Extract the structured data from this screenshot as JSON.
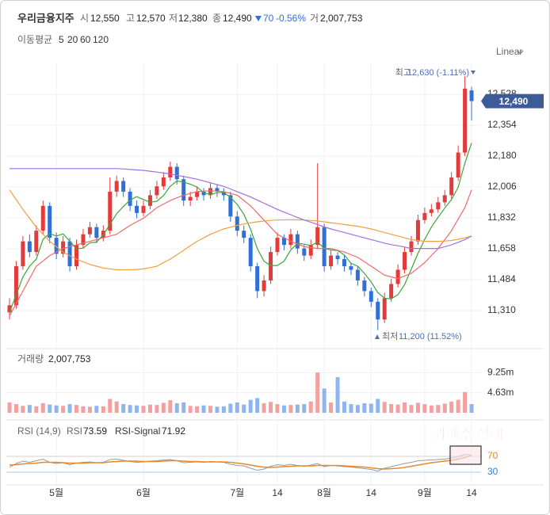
{
  "header": {
    "name": "우리금융지주",
    "items": [
      {
        "label": "시",
        "value": "12,550"
      },
      {
        "label": "고",
        "value": "12,570"
      },
      {
        "label": "저",
        "value": "12,380"
      },
      {
        "label": "종",
        "value": "12,490"
      }
    ],
    "change": "70",
    "change_pct": "-0.56%",
    "volume_label": "거",
    "volume": "2,007,753"
  },
  "chart_data": {
    "type": "candlestick",
    "scale": "Linear",
    "ma_label": "이동평균",
    "grid": true,
    "up_color": "#e33b3b",
    "down_color": "#2f6fd8",
    "categories": [
      null,
      null,
      null,
      null,
      null,
      null,
      null,
      "5월",
      null,
      null,
      null,
      null,
      null,
      null,
      null,
      null,
      null,
      null,
      null,
      null,
      "6월",
      null,
      null,
      null,
      null,
      null,
      null,
      null,
      null,
      null,
      null,
      null,
      null,
      null,
      "7월",
      null,
      null,
      null,
      null,
      null,
      "14",
      null,
      null,
      null,
      null,
      null,
      null,
      "8월",
      null,
      null,
      null,
      null,
      null,
      null,
      "14",
      null,
      null,
      null,
      null,
      null,
      null,
      null,
      "9월",
      null,
      null,
      null,
      null,
      null,
      null,
      "14"
    ],
    "candles": [
      [
        11300,
        11380,
        11260,
        11340
      ],
      [
        11340,
        11590,
        11320,
        11560
      ],
      [
        11560,
        11730,
        11540,
        11700
      ],
      [
        11700,
        11740,
        11610,
        11640
      ],
      [
        11640,
        11790,
        11620,
        11760
      ],
      [
        11760,
        11930,
        11740,
        11900
      ],
      [
        11900,
        11920,
        11690,
        11720
      ],
      [
        11720,
        11750,
        11600,
        11630
      ],
      [
        11630,
        11730,
        11610,
        11700
      ],
      [
        11700,
        11720,
        11530,
        11560
      ],
      [
        11560,
        11710,
        11540,
        11680
      ],
      [
        11680,
        11770,
        11660,
        11740
      ],
      [
        11740,
        11810,
        11720,
        11780
      ],
      [
        11780,
        11800,
        11690,
        11720
      ],
      [
        11720,
        11790,
        11700,
        11760
      ],
      [
        11760,
        12060,
        11740,
        11980
      ],
      [
        11980,
        12070,
        11950,
        12040
      ],
      [
        12040,
        12060,
        11950,
        11980
      ],
      [
        11980,
        12000,
        11870,
        11900
      ],
      [
        11900,
        11930,
        11830,
        11860
      ],
      [
        11860,
        11930,
        11840,
        11900
      ],
      [
        11900,
        11990,
        11880,
        11960
      ],
      [
        11960,
        12040,
        11940,
        12010
      ],
      [
        12010,
        12090,
        11990,
        12060
      ],
      [
        12060,
        12150,
        12040,
        12120
      ],
      [
        12120,
        12140,
        12020,
        12050
      ],
      [
        12050,
        12070,
        11900,
        11930
      ],
      [
        11930,
        11980,
        11900,
        11950
      ],
      [
        11950,
        12010,
        11930,
        11980
      ],
      [
        11980,
        12000,
        11930,
        11960
      ],
      [
        11960,
        12030,
        11940,
        12000
      ],
      [
        12000,
        12020,
        11950,
        11980
      ],
      [
        11980,
        12000,
        11930,
        11960
      ],
      [
        11960,
        11980,
        11810,
        11840
      ],
      [
        11840,
        11870,
        11730,
        11760
      ],
      [
        11760,
        11790,
        11690,
        11720
      ],
      [
        11720,
        11740,
        11530,
        11560
      ],
      [
        11560,
        11580,
        11380,
        11420
      ],
      [
        11420,
        11510,
        11390,
        11480
      ],
      [
        11480,
        11670,
        11460,
        11640
      ],
      [
        11640,
        11750,
        11620,
        11720
      ],
      [
        11720,
        11740,
        11650,
        11680
      ],
      [
        11680,
        11770,
        11660,
        11740
      ],
      [
        11740,
        11760,
        11630,
        11660
      ],
      [
        11660,
        11680,
        11590,
        11620
      ],
      [
        11620,
        11710,
        11600,
        11680
      ],
      [
        11680,
        12140,
        11660,
        11780
      ],
      [
        11780,
        11800,
        11530,
        11560
      ],
      [
        11560,
        11650,
        11540,
        11620
      ],
      [
        11620,
        11640,
        11570,
        11600
      ],
      [
        11600,
        11620,
        11530,
        11560
      ],
      [
        11560,
        11580,
        11510,
        11540
      ],
      [
        11540,
        11560,
        11450,
        11480
      ],
      [
        11480,
        11500,
        11390,
        11420
      ],
      [
        11420,
        11440,
        11330,
        11360
      ],
      [
        11360,
        11380,
        11200,
        11260
      ],
      [
        11260,
        11410,
        11240,
        11380
      ],
      [
        11380,
        11490,
        11360,
        11460
      ],
      [
        11460,
        11570,
        11440,
        11540
      ],
      [
        11540,
        11670,
        11520,
        11640
      ],
      [
        11640,
        11730,
        11620,
        11700
      ],
      [
        11700,
        11850,
        11680,
        11820
      ],
      [
        11820,
        11890,
        11800,
        11860
      ],
      [
        11860,
        11910,
        11840,
        11880
      ],
      [
        11880,
        11950,
        11860,
        11920
      ],
      [
        11920,
        11990,
        11900,
        11960
      ],
      [
        11960,
        12090,
        11940,
        12060
      ],
      [
        12060,
        12240,
        12040,
        12200
      ],
      [
        12200,
        12630,
        12180,
        12560
      ],
      [
        12550,
        12570,
        12380,
        12490
      ]
    ],
    "series": [
      {
        "name": "5",
        "color": "#3da53d",
        "values": [
          11300,
          11400,
          11500,
          11560,
          11600,
          11712,
          11744,
          11730,
          11742,
          11702,
          11658,
          11662,
          11692,
          11696,
          11736,
          11796,
          11856,
          11896,
          11932,
          11952,
          11936,
          11920,
          11926,
          11958,
          12010,
          12040,
          12034,
          12022,
          12006,
          11974,
          11964,
          11974,
          11976,
          11948,
          11908,
          11852,
          11768,
          11660,
          11588,
          11564,
          11564,
          11588,
          11652,
          11688,
          11684,
          11676,
          11696,
          11660,
          11652,
          11648,
          11624,
          11576,
          11560,
          11520,
          11472,
          11412,
          11380,
          11376,
          11400,
          11456,
          11544,
          11632,
          11712,
          11780,
          11836,
          11888,
          11936,
          12004,
          12140,
          12254
        ]
      },
      {
        "name": "20",
        "color": "#ef6a6a",
        "values": [
          11280,
          11350,
          11420,
          11490,
          11560,
          11590,
          11620,
          11640,
          11660,
          11670,
          11680,
          11690,
          11700,
          11710,
          11720,
          11730,
          11740,
          11765,
          11790,
          11810,
          11830,
          11860,
          11890,
          11910,
          11930,
          11945,
          11960,
          11970,
          11980,
          11983,
          11985,
          11983,
          11980,
          11970,
          11960,
          11930,
          11900,
          11860,
          11820,
          11780,
          11740,
          11720,
          11700,
          11685,
          11670,
          11665,
          11660,
          11660,
          11660,
          11650,
          11640,
          11625,
          11610,
          11585,
          11560,
          11535,
          11510,
          11500,
          11490,
          11505,
          11520,
          11550,
          11580,
          11620,
          11660,
          11710,
          11760,
          11825,
          11890,
          11990
        ]
      },
      {
        "name": "60",
        "color": "#f0a040",
        "values": [
          11990,
          11935,
          11880,
          11830,
          11780,
          11740,
          11700,
          11670,
          11640,
          11620,
          11600,
          11585,
          11570,
          11560,
          11550,
          11545,
          11540,
          11540,
          11540,
          11542,
          11545,
          11552,
          11560,
          11580,
          11600,
          11625,
          11650,
          11675,
          11700,
          11720,
          11740,
          11755,
          11770,
          11780,
          11790,
          11798,
          11805,
          11810,
          11815,
          11818,
          11820,
          11821,
          11822,
          11821,
          11820,
          11818,
          11815,
          11810,
          11805,
          11800,
          11795,
          11790,
          11785,
          11778,
          11770,
          11760,
          11750,
          11740,
          11730,
          11720,
          11710,
          11705,
          11700,
          11700,
          11700,
          11702,
          11705,
          11712,
          11720,
          11730
        ]
      },
      {
        "name": "120",
        "color": "#a070e0",
        "values": [
          12110,
          12110,
          12110,
          12110,
          12110,
          12110,
          12110,
          12110,
          12110,
          12110,
          12110,
          12110,
          12110,
          12110,
          12110,
          12110,
          12110,
          12108,
          12105,
          12102,
          12100,
          12095,
          12090,
          12085,
          12080,
          12072,
          12065,
          12058,
          12050,
          12040,
          12030,
          12020,
          12010,
          11995,
          11980,
          11965,
          11950,
          11932,
          11915,
          11898,
          11880,
          11865,
          11850,
          11835,
          11820,
          11808,
          11795,
          11782,
          11770,
          11760,
          11750,
          11740,
          11730,
          11720,
          11710,
          11700,
          11690,
          11682,
          11675,
          11668,
          11660,
          11660,
          11660,
          11660,
          11660,
          11670,
          11680,
          11695,
          11710,
          11730
        ]
      }
    ],
    "ylim": [
      11105,
      12680
    ],
    "yticks": [
      {
        "value": 12528,
        "label": "12,528"
      },
      {
        "value": 12354,
        "label": "12,354"
      },
      {
        "value": 12180,
        "label": "12,180"
      },
      {
        "value": 12006,
        "label": "12,006"
      },
      {
        "value": 11832,
        "label": "11,832"
      },
      {
        "value": 11658,
        "label": "11,658"
      },
      {
        "value": 11484,
        "label": "11,484"
      },
      {
        "value": 11310,
        "label": "11,310"
      }
    ],
    "last_price": {
      "value": 12490,
      "label": "12,490"
    },
    "annotations": [
      {
        "label": "최고",
        "text": "12,630 (-1.11%)"
      },
      {
        "label": "최저",
        "text": "11,200 (11.52%)"
      }
    ],
    "volume": {
      "label": "거래량",
      "value_label": "2,007,753",
      "up_color": "#f2a0a0",
      "down_color": "#8db6ee",
      "values": [
        2400000,
        2000000,
        1600000,
        1800000,
        1500000,
        2200000,
        1900000,
        1700000,
        1600000,
        2000000,
        1800000,
        1500000,
        1400000,
        1600000,
        1500000,
        3200000,
        2600000,
        2000000,
        1800000,
        1700000,
        1600000,
        1900000,
        1800000,
        2300000,
        2900000,
        2200000,
        2400000,
        1600000,
        1500000,
        1700000,
        1600000,
        1400000,
        1500000,
        2100000,
        2400000,
        1900000,
        3000000,
        3400000,
        2200000,
        2500000,
        2000000,
        1700000,
        1800000,
        1900000,
        2000000,
        2600000,
        9300000,
        5600000,
        2400000,
        8200000,
        2600000,
        2000000,
        1800000,
        2200000,
        2100000,
        3200000,
        2500000,
        2000000,
        1900000,
        2400000,
        1800000,
        2300000,
        2000000,
        1700000,
        1800000,
        2100000,
        2600000,
        3000000,
        4800000,
        2007753
      ],
      "ylim": [
        0,
        14800000
      ],
      "yticks": [
        {
          "value": 9250000,
          "label": "9.25m"
        },
        {
          "value": 4630000,
          "label": "4.63m"
        }
      ]
    },
    "rsi": {
      "label": "RSI (14,9)",
      "note": "과매수 상태",
      "ylim": [
        0,
        160
      ],
      "yticks": [
        70,
        30
      ],
      "tick_colors": [
        "#e8892a",
        "#3b7dd8"
      ],
      "series": [
        {
          "name": "RSI",
          "color": "#999999",
          "values": [
            42,
            52,
            58,
            55,
            59,
            63,
            55,
            52,
            54,
            49,
            53,
            55,
            56,
            54,
            55,
            62,
            63,
            60,
            57,
            55,
            56,
            58,
            59,
            61,
            62,
            59,
            54,
            55,
            56,
            55,
            57,
            56,
            55,
            50,
            47,
            46,
            40,
            35,
            38,
            45,
            49,
            47,
            50,
            47,
            45,
            48,
            52,
            44,
            47,
            46,
            44,
            43,
            41,
            39,
            37,
            33,
            40,
            44,
            48,
            52,
            55,
            59,
            60,
            61,
            62,
            63,
            66,
            69,
            75,
            73.59
          ]
        },
        {
          "name": "RSI-Signal",
          "color": "#e8892a",
          "values": [
            48,
            49,
            51,
            52,
            53,
            55,
            55,
            55,
            54,
            53,
            53,
            53,
            54,
            54,
            54,
            56,
            57,
            58,
            58,
            58,
            57,
            57,
            57,
            58,
            59,
            59,
            58,
            57,
            57,
            56,
            56,
            56,
            56,
            55,
            53,
            51,
            48,
            45,
            43,
            42,
            43,
            44,
            45,
            46,
            46,
            46,
            47,
            47,
            47,
            47,
            46,
            45,
            44,
            43,
            41,
            39,
            38,
            39,
            40,
            42,
            45,
            48,
            51,
            54,
            56,
            58,
            60,
            63,
            67,
            71.92
          ]
        }
      ]
    }
  }
}
